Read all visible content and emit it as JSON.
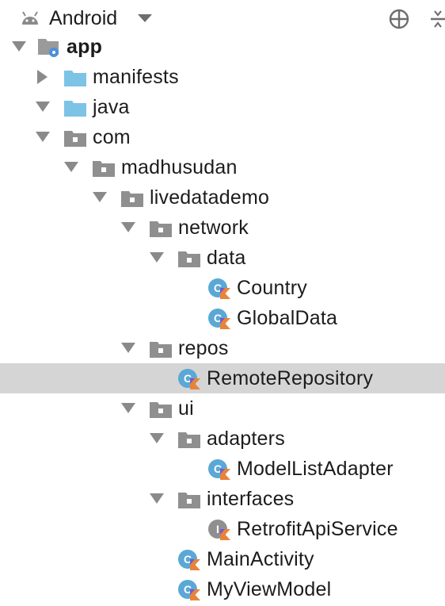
{
  "header": {
    "title": "Android",
    "icons": [
      "android-icon",
      "chevron-down-icon",
      "locate-target-icon",
      "collapse-all-icon"
    ]
  },
  "tree": {
    "items": [
      {
        "label": "app",
        "kind": "module",
        "expanded": true,
        "depth": 0
      },
      {
        "label": "manifests",
        "kind": "folder",
        "expanded": false,
        "depth": 1
      },
      {
        "label": "java",
        "kind": "folder",
        "expanded": true,
        "depth": 1
      },
      {
        "label": "com",
        "kind": "package",
        "expanded": true,
        "depth": 2
      },
      {
        "label": "madhusudan",
        "kind": "package",
        "expanded": true,
        "depth": 3
      },
      {
        "label": "livedatademo",
        "kind": "package",
        "expanded": true,
        "depth": 4
      },
      {
        "label": "network",
        "kind": "package",
        "expanded": true,
        "depth": 5
      },
      {
        "label": "data",
        "kind": "package",
        "expanded": true,
        "depth": 6
      },
      {
        "label": "Country",
        "kind": "kotlin-class",
        "depth": 7
      },
      {
        "label": "GlobalData",
        "kind": "kotlin-class",
        "depth": 7
      },
      {
        "label": "repos",
        "kind": "package",
        "expanded": true,
        "depth": 5
      },
      {
        "label": "RemoteRepository",
        "kind": "kotlin-class",
        "depth": 6,
        "selected": true
      },
      {
        "label": "ui",
        "kind": "package",
        "expanded": true,
        "depth": 5
      },
      {
        "label": "adapters",
        "kind": "package",
        "expanded": true,
        "depth": 6
      },
      {
        "label": "ModelListAdapter",
        "kind": "kotlin-class",
        "depth": 7
      },
      {
        "label": "interfaces",
        "kind": "package",
        "expanded": true,
        "depth": 6
      },
      {
        "label": "RetrofitApiService",
        "kind": "kotlin-interface",
        "depth": 7
      },
      {
        "label": "MainActivity",
        "kind": "kotlin-class",
        "depth": 6
      },
      {
        "label": "MyViewModel",
        "kind": "kotlin-class",
        "depth": 6
      }
    ]
  },
  "colors": {
    "folder_blue": "#7cc3e6",
    "package_gray": "#8f8f8f",
    "class_blue": "#5aa8d6",
    "kotlin_orange": "#e8833a",
    "kotlin_purple": "#6f5bd1",
    "interface_gray": "#8f8f8f",
    "selected_row": "#d5d5d5",
    "arrow_gray": "#8a8a8a"
  }
}
